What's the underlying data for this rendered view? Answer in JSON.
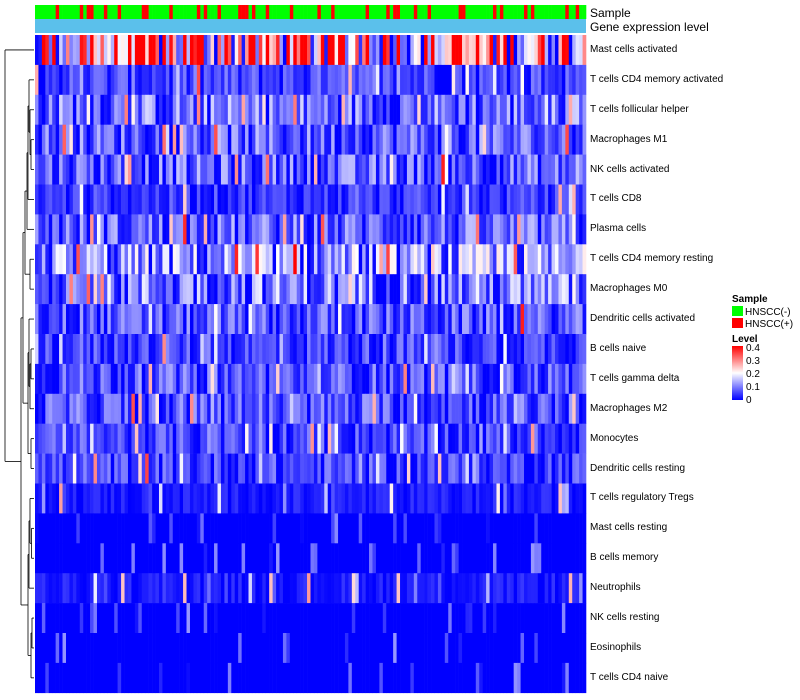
{
  "chart_data": {
    "type": "heatmap",
    "title": "",
    "annotation_tracks": [
      {
        "name": "Sample",
        "label": "Sample"
      },
      {
        "name": "Gene expression level",
        "label": "Gene expression level"
      }
    ],
    "rows": [
      "Mast cells activated",
      "T cells CD4 memory activated",
      "T cells follicular helper",
      "Macrophages M1",
      "NK cells activated",
      "T cells CD8",
      "Plasma cells",
      "T cells CD4 memory resting",
      "Macrophages M0",
      "Dendritic cells activated",
      "B cells naive",
      "T cells gamma delta",
      "Macrophages M2",
      "Monocytes",
      "Dendritic cells resting",
      "T cells regulatory  Tregs",
      "Mast cells resting",
      "B cells memory",
      "Neutrophils",
      "NK cells resting",
      "Eosinophils",
      "T cells CD4 naive"
    ],
    "row_mean_levels": [
      0.25,
      0.05,
      0.08,
      0.07,
      0.07,
      0.04,
      0.07,
      0.1,
      0.09,
      0.06,
      0.05,
      0.06,
      0.06,
      0.05,
      0.05,
      0.02,
      0.01,
      0.01,
      0.02,
      0.005,
      0.003,
      0.003
    ],
    "column_count": 160,
    "color_scale": {
      "label": "Level",
      "min": 0,
      "max": 0.4,
      "ticks": [
        "0.4",
        "0.3",
        "0.2",
        "0.1",
        "0"
      ],
      "colors": [
        "#0000ff",
        "#ffffff",
        "#ff0000"
      ]
    },
    "legend": {
      "sample_title": "Sample",
      "sample_items": [
        {
          "label": "HNSCC(-)",
          "color": "#00ff00"
        },
        {
          "label": "HNSCC(+)",
          "color": "#ff0000"
        }
      ],
      "expression_track_color": "#5bc0eb"
    },
    "dendrogram": "left, row clustering"
  }
}
